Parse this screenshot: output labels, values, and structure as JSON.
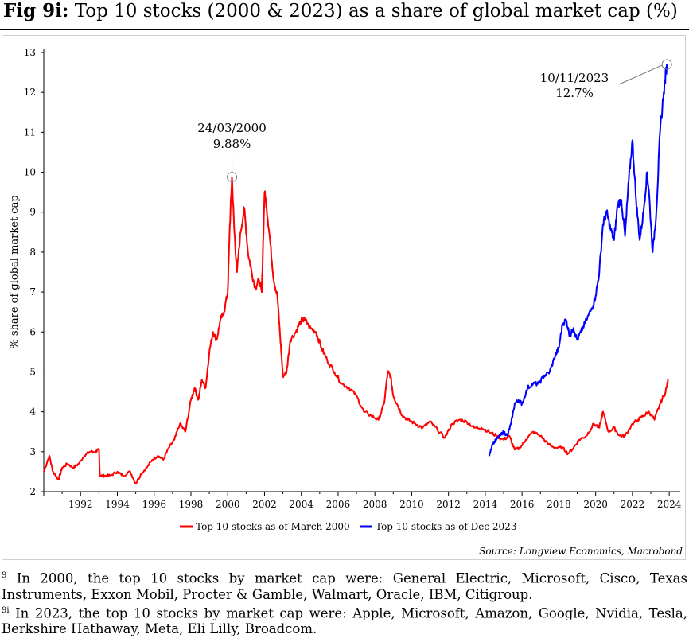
{
  "title": {
    "fig_label": "Fig 9i:",
    "text": "Top 10 stocks (2000 & 2023) as a share of global market cap (%)"
  },
  "source": "Source: Longview Economics, Macrobond",
  "footnotes": [
    {
      "mark": "9",
      "text": "In 2000, the top 10 stocks by market cap were: General Electric, Microsoft, Cisco, Texas Instruments, Exxon Mobil, Procter & Gamble, Walmart, Oracle, IBM, Citigroup."
    },
    {
      "mark": "9i",
      "text": "In 2023, the top 10 stocks by market cap were: Apple, Microsoft, Amazon, Google, Nvidia, Tesla, Berkshire Hathaway, Meta, Eli Lilly, Broadcom."
    }
  ],
  "chart_data": {
    "type": "line",
    "ylabel": "% share of global market cap",
    "xlabel": "",
    "ylim": [
      2,
      13
    ],
    "xlim": [
      1990.0,
      2024.6
    ],
    "yticks": [
      "2",
      "3",
      "4",
      "5",
      "6",
      "7",
      "8",
      "9",
      "10",
      "11",
      "12",
      "13"
    ],
    "xticks": [
      "1992",
      "1994",
      "1996",
      "1998",
      "2000",
      "2002",
      "2004",
      "2006",
      "2008",
      "2010",
      "2012",
      "2014",
      "2016",
      "2018",
      "2020",
      "2022",
      "2024"
    ],
    "grid": false,
    "legend_position": "bottom",
    "series": [
      {
        "name": "Top 10 stocks as of March 2000",
        "color": "#ff0000",
        "x": [
          1990.0,
          1990.3,
          1990.5,
          1990.8,
          1991.0,
          1991.3,
          1991.6,
          1991.9,
          1992.2,
          1992.5,
          1992.8,
          1993.0,
          1993.05,
          1993.3,
          1993.6,
          1994.0,
          1994.3,
          1994.7,
          1995.0,
          1995.3,
          1995.6,
          1995.9,
          1996.2,
          1996.5,
          1996.8,
          1997.1,
          1997.4,
          1997.7,
          1998.0,
          1998.2,
          1998.4,
          1998.6,
          1998.8,
          1999.0,
          1999.2,
          1999.4,
          1999.6,
          1999.8,
          2000.0,
          2000.1,
          2000.23,
          2000.35,
          2000.5,
          2000.7,
          2000.9,
          2001.1,
          2001.3,
          2001.5,
          2001.7,
          2001.85,
          2002.0,
          2002.1,
          2002.3,
          2002.5,
          2002.7,
          2002.85,
          2003.0,
          2003.2,
          2003.4,
          2003.7,
          2004.0,
          2004.2,
          2004.5,
          2004.8,
          2005.1,
          2005.4,
          2005.8,
          2006.2,
          2006.6,
          2007.0,
          2007.4,
          2007.8,
          2008.2,
          2008.5,
          2008.7,
          2008.85,
          2009.0,
          2009.2,
          2009.5,
          2009.8,
          2010.2,
          2010.6,
          2011.0,
          2011.4,
          2011.8,
          2012.2,
          2012.6,
          2013.0,
          2013.4,
          2013.8,
          2014.2,
          2014.6,
          2015.0,
          2015.3,
          2015.6,
          2015.9,
          2016.2,
          2016.6,
          2017.0,
          2017.4,
          2017.8,
          2018.2,
          2018.5,
          2018.8,
          2019.1,
          2019.5,
          2019.9,
          2020.2,
          2020.4,
          2020.7,
          2021.0,
          2021.3,
          2021.6,
          2022.0,
          2022.3,
          2022.6,
          2022.9,
          2023.2,
          2023.5,
          2023.8,
          2023.95
        ],
        "y": [
          2.5,
          2.9,
          2.5,
          2.3,
          2.6,
          2.7,
          2.6,
          2.7,
          2.9,
          3.0,
          3.0,
          3.05,
          2.4,
          2.4,
          2.4,
          2.5,
          2.4,
          2.5,
          2.2,
          2.45,
          2.6,
          2.8,
          2.9,
          2.8,
          3.1,
          3.3,
          3.7,
          3.5,
          4.3,
          4.6,
          4.3,
          4.8,
          4.6,
          5.5,
          6.0,
          5.8,
          6.3,
          6.5,
          7.0,
          8.5,
          9.88,
          8.6,
          7.5,
          8.5,
          9.1,
          8.0,
          7.5,
          7.1,
          7.3,
          7.0,
          9.5,
          9.2,
          8.3,
          7.3,
          6.9,
          5.9,
          4.9,
          5.0,
          5.8,
          6.0,
          6.3,
          6.3,
          6.1,
          6.0,
          5.6,
          5.3,
          5.0,
          4.7,
          4.6,
          4.4,
          4.0,
          3.9,
          3.8,
          4.2,
          5.0,
          4.9,
          4.4,
          4.2,
          3.9,
          3.8,
          3.7,
          3.6,
          3.75,
          3.55,
          3.35,
          3.7,
          3.8,
          3.75,
          3.6,
          3.6,
          3.5,
          3.4,
          3.3,
          3.4,
          3.05,
          3.1,
          3.3,
          3.5,
          3.4,
          3.2,
          3.1,
          3.1,
          2.95,
          3.1,
          3.3,
          3.4,
          3.7,
          3.6,
          4.0,
          3.5,
          3.6,
          3.4,
          3.4,
          3.7,
          3.8,
          3.9,
          4.0,
          3.8,
          4.2,
          4.5,
          4.8
        ],
        "annotation": {
          "label": "24/03/2000",
          "value": "9.88%",
          "x": 2000.23,
          "y": 9.88
        }
      },
      {
        "name": "Top 10 stocks as of Dec 2023",
        "color": "#0000ff",
        "x": [
          2014.2,
          2014.4,
          2014.6,
          2014.8,
          2015.0,
          2015.2,
          2015.4,
          2015.6,
          2015.8,
          2016.0,
          2016.3,
          2016.6,
          2016.9,
          2017.2,
          2017.5,
          2017.8,
          2018.0,
          2018.2,
          2018.4,
          2018.6,
          2018.8,
          2019.0,
          2019.2,
          2019.5,
          2019.8,
          2020.0,
          2020.2,
          2020.4,
          2020.6,
          2020.8,
          2021.0,
          2021.2,
          2021.4,
          2021.6,
          2021.8,
          2022.0,
          2022.2,
          2022.4,
          2022.6,
          2022.8,
          2022.9,
          2023.1,
          2023.3,
          2023.5,
          2023.7,
          2023.87
        ],
        "y": [
          2.9,
          3.2,
          3.3,
          3.4,
          3.5,
          3.4,
          3.7,
          4.2,
          4.3,
          4.2,
          4.6,
          4.7,
          4.7,
          4.9,
          5.0,
          5.4,
          5.6,
          6.2,
          6.3,
          5.9,
          6.1,
          5.8,
          6.0,
          6.3,
          6.6,
          6.9,
          7.5,
          8.7,
          9.0,
          8.6,
          8.3,
          9.2,
          9.3,
          8.4,
          9.8,
          10.8,
          9.3,
          8.3,
          9.0,
          10.0,
          9.5,
          8.0,
          9.0,
          11.0,
          12.0,
          12.7
        ],
        "annotation": {
          "label": "10/11/2023",
          "value": "12.7%",
          "x": 2023.87,
          "y": 12.7
        }
      }
    ]
  }
}
